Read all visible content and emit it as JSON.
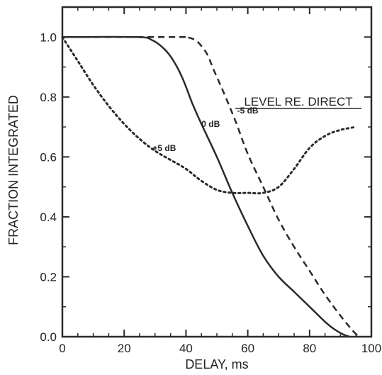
{
  "chart_data": {
    "type": "line",
    "title": "",
    "xlabel": "DELAY, ms",
    "ylabel": "FRACTION INTEGRATED",
    "xlim": [
      0,
      100
    ],
    "ylim": [
      0,
      1.1
    ],
    "xticks": [
      0,
      20,
      40,
      60,
      80,
      100
    ],
    "xtick_labels": [
      "0",
      "20",
      "40",
      "60",
      "80",
      "100"
    ],
    "yticks": [
      0.0,
      0.2,
      0.4,
      0.6,
      0.8,
      1.0
    ],
    "ytick_labels": [
      "0.0",
      "0.2",
      "0.4",
      "0.6",
      "0.8",
      "1.0"
    ],
    "grid": false,
    "legend_title": "LEVEL RE. DIRECT",
    "series": [
      {
        "name": "0 dB",
        "line_style": "solid",
        "color": "#2a2a2a",
        "x": [
          0,
          24,
          29,
          33,
          36,
          39,
          42,
          45,
          50,
          55,
          60,
          65,
          70,
          75,
          80,
          85,
          88,
          91,
          93
        ],
        "y": [
          1.0,
          1.0,
          0.99,
          0.96,
          0.92,
          0.86,
          0.78,
          0.71,
          0.6,
          0.48,
          0.37,
          0.27,
          0.2,
          0.15,
          0.1,
          0.05,
          0.025,
          0.007,
          0.0
        ]
      },
      {
        "name": "-5 dB",
        "line_style": "dashed",
        "color": "#2a2a2a",
        "x": [
          0,
          36,
          40,
          43,
          45,
          47,
          49,
          52,
          56,
          60,
          65,
          70,
          75,
          80,
          85,
          90,
          94,
          96
        ],
        "y": [
          1.0,
          1.0,
          1.0,
          0.99,
          0.97,
          0.94,
          0.89,
          0.82,
          0.72,
          0.61,
          0.5,
          0.39,
          0.3,
          0.22,
          0.14,
          0.07,
          0.02,
          0.0
        ]
      },
      {
        "name": "+5 dB",
        "line_style": "dotted",
        "color": "#2a2a2a",
        "x": [
          0,
          5,
          10,
          15,
          20,
          25,
          30,
          35,
          40,
          45,
          50,
          55,
          60,
          65,
          70,
          75,
          80,
          85,
          90,
          95
        ],
        "y": [
          1.0,
          0.92,
          0.84,
          0.77,
          0.71,
          0.66,
          0.62,
          0.59,
          0.56,
          0.52,
          0.49,
          0.48,
          0.48,
          0.48,
          0.5,
          0.56,
          0.63,
          0.67,
          0.69,
          0.7
        ]
      }
    ],
    "annotations": [
      {
        "text": "0 dB",
        "x": 48,
        "y": 0.7
      },
      {
        "text": "-5 dB",
        "x": 60,
        "y": 0.745
      },
      {
        "text": "+5 dB",
        "x": 33,
        "y": 0.62
      }
    ]
  }
}
